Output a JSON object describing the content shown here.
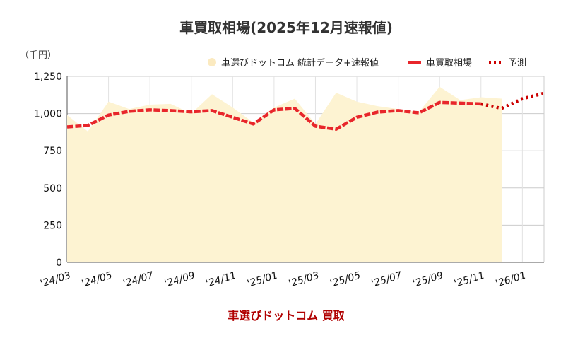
{
  "chart_data": {
    "type": "line",
    "title": "車買取相場(2025年12月速報値)",
    "unit_label": "（千円）",
    "source_label": "車選びドットコム 買取",
    "ylim": [
      0,
      1250
    ],
    "yticks": [
      0,
      250,
      500,
      750,
      1000,
      1250
    ],
    "ytick_labels": [
      "0",
      "250",
      "500",
      "750",
      "1,000",
      "1,250"
    ],
    "xtick_labels": [
      "'24/03",
      "'24/05",
      "'24/07",
      "'24/09",
      "'24/11",
      "'25/01",
      "'25/03",
      "'25/05",
      "'25/07",
      "'25/09",
      "'25/11",
      "'26/01"
    ],
    "grid": true,
    "legend_position": "top-right",
    "colors": {
      "area": "#fdf3d2",
      "area_legend": "#fbeac0",
      "market": "#e8262b",
      "forecast": "#cc0000",
      "grid": "#cccccc",
      "axis": "#555555"
    },
    "series": [
      {
        "name": "車選びドットコム 統計データ+速報値",
        "style": "area",
        "x": [
          "'24/03",
          "'24/04",
          "'24/05",
          "'24/06",
          "'24/07",
          "'24/08",
          "'24/09",
          "'24/10",
          "'24/11",
          "'24/12",
          "'25/01",
          "'25/02",
          "'25/03",
          "'25/04",
          "'25/05",
          "'25/06",
          "'25/07",
          "'25/08",
          "'25/09",
          "'25/10",
          "'25/11",
          "'25/12"
        ],
        "values": [
          990,
          880,
          1080,
          1030,
          1060,
          1065,
          1000,
          1130,
          1040,
          940,
          1040,
          1100,
          930,
          1140,
          1080,
          1050,
          1030,
          1010,
          1180,
          1090,
          1110,
          1100
        ]
      },
      {
        "name": "車買取相場",
        "style": "line",
        "x": [
          "'24/03",
          "'24/04",
          "'24/05",
          "'24/06",
          "'24/07",
          "'24/08",
          "'24/09",
          "'24/10",
          "'24/11",
          "'24/12",
          "'25/01",
          "'25/02",
          "'25/03",
          "'25/04",
          "'25/05",
          "'25/06",
          "'25/07",
          "'25/08",
          "'25/09",
          "'25/10",
          "'25/11"
        ],
        "values": [
          910,
          920,
          990,
          1015,
          1025,
          1020,
          1012,
          1020,
          975,
          930,
          1025,
          1035,
          915,
          895,
          975,
          1010,
          1020,
          1005,
          1075,
          1070,
          1065
        ]
      },
      {
        "name": "予測",
        "style": "dotted",
        "x": [
          "'25/11",
          "'25/12",
          "'26/01",
          "'26/02"
        ],
        "values": [
          1065,
          1035,
          1100,
          1135
        ]
      }
    ]
  }
}
